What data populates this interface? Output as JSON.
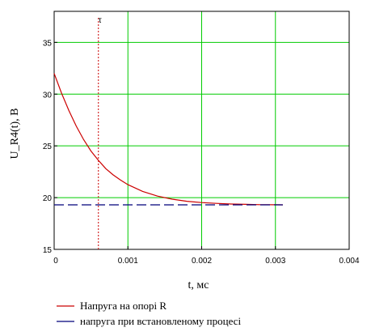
{
  "chart_data": {
    "type": "line",
    "xlabel": "t, мс",
    "ylabel": "U_R4(t), В",
    "xlim": [
      0,
      0.004
    ],
    "ylim": [
      15,
      38
    ],
    "x_ticks": [
      {
        "value": 0,
        "label": "0"
      },
      {
        "value": 0.001,
        "label": "0.001"
      },
      {
        "value": 0.002,
        "label": "0.002"
      },
      {
        "value": 0.003,
        "label": "0.003"
      },
      {
        "value": 0.004,
        "label": "0.004"
      }
    ],
    "y_ticks": [
      {
        "value": 15,
        "label": "15"
      },
      {
        "value": 20,
        "label": "20"
      },
      {
        "value": 25,
        "label": "25"
      },
      {
        "value": 30,
        "label": "30"
      },
      {
        "value": 35,
        "label": "35"
      }
    ],
    "grid": true,
    "marker": {
      "x": 0.0006,
      "label": "τ"
    },
    "series": [
      {
        "name": "Напруга на опорі R",
        "color": "#cc0000",
        "line_style": "solid",
        "x": [
          0,
          0.0001,
          0.0002,
          0.0003,
          0.0004,
          0.0005,
          0.0006,
          0.0007,
          0.0008,
          0.0009,
          0.001,
          0.0012,
          0.0014,
          0.0016,
          0.0018,
          0.002,
          0.0022,
          0.0024,
          0.0026,
          0.0028,
          0.003,
          0.0031
        ],
        "y": [
          32.0,
          30.1,
          28.4,
          26.9,
          25.6,
          24.5,
          23.6,
          22.8,
          22.2,
          21.7,
          21.25,
          20.6,
          20.15,
          19.85,
          19.65,
          19.52,
          19.44,
          19.38,
          19.35,
          19.32,
          19.31,
          19.3
        ]
      },
      {
        "name": "напруга при встановленому процесі",
        "color": "#00007a",
        "line_style": "dashed",
        "x": [
          0,
          0.0031
        ],
        "y": [
          19.3,
          19.3
        ]
      }
    ],
    "legend": {
      "placement": "bottom-left"
    }
  }
}
